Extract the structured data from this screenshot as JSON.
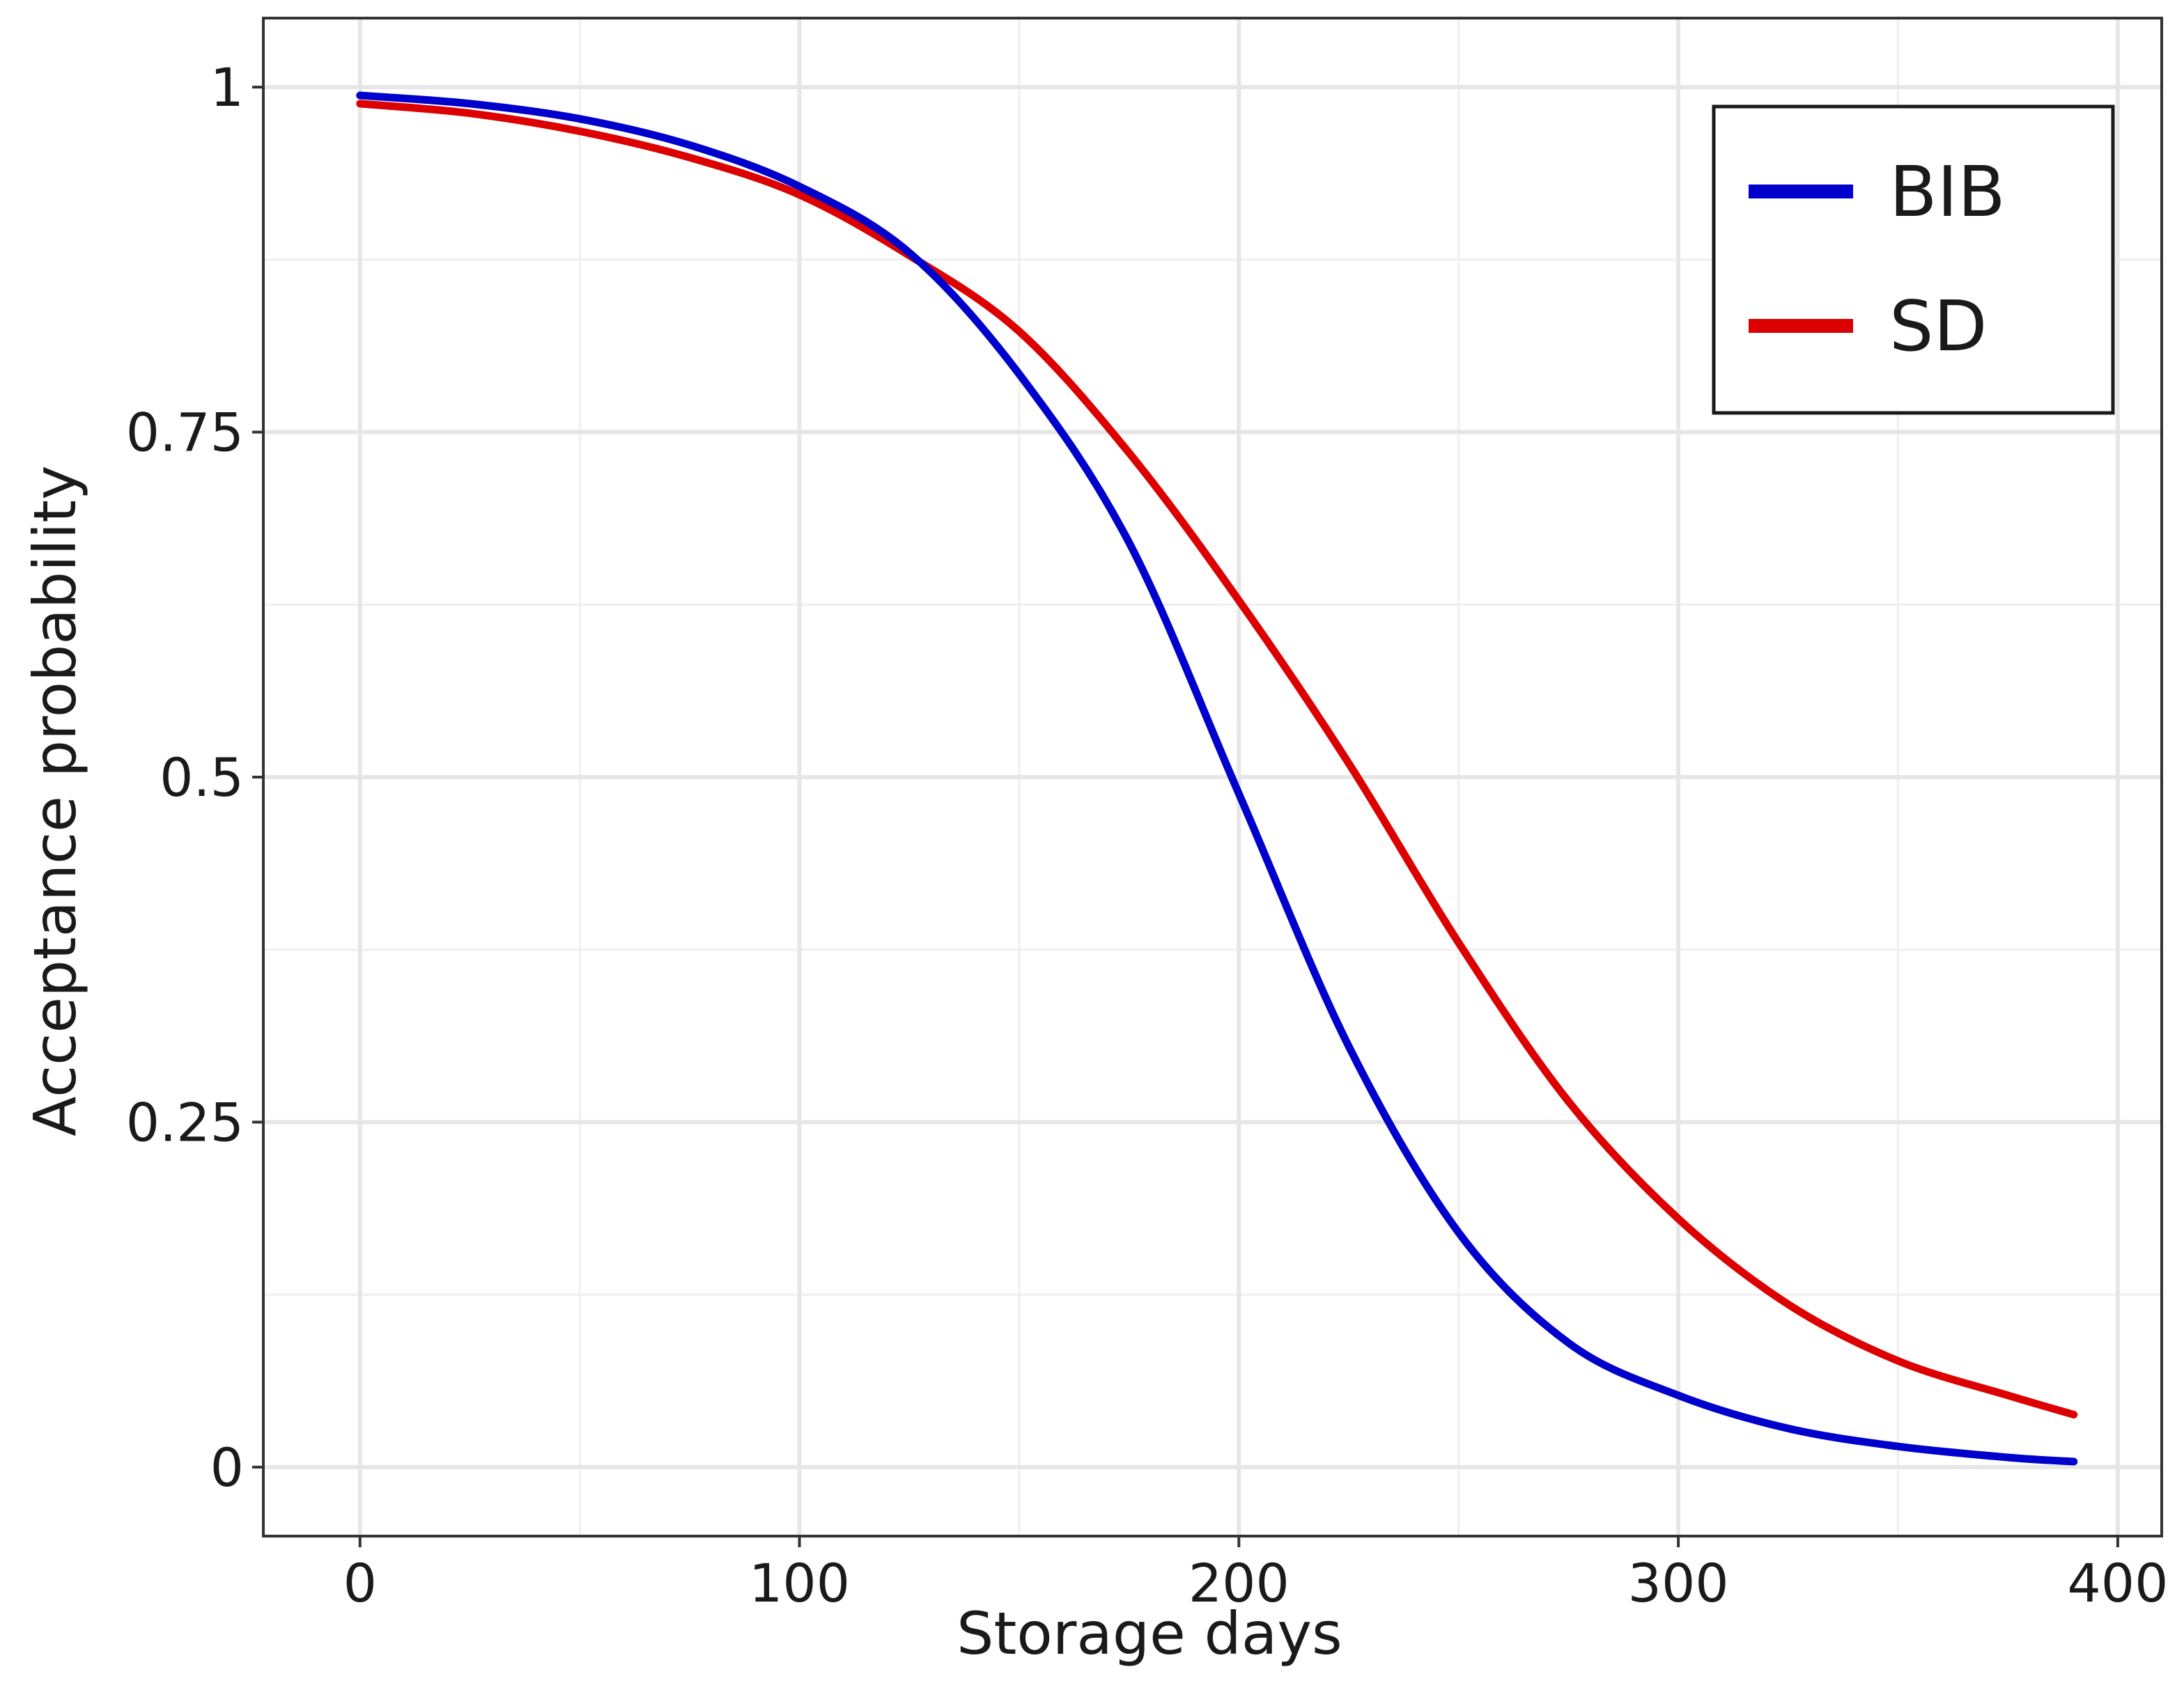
{
  "chart_data": {
    "type": "line",
    "title": "",
    "xlabel": "Storage days",
    "ylabel": "Acceptance probability",
    "xlim": [
      -22,
      410
    ],
    "ylim": [
      -0.05,
      1.05
    ],
    "x_ticks": [
      0,
      100,
      200,
      300,
      400
    ],
    "x_tick_labels": [
      "0",
      "100",
      "200",
      "300",
      "400"
    ],
    "y_ticks": [
      0,
      0.25,
      0.5,
      0.75,
      1
    ],
    "y_tick_labels": [
      "0",
      "0.25",
      "0.5",
      "0.75",
      "1"
    ],
    "x_minor_ticks": [
      50,
      150,
      250,
      350
    ],
    "y_minor_ticks": [
      0.125,
      0.375,
      0.625,
      0.875
    ],
    "grid": true,
    "legend": {
      "placement": "top-right",
      "entries": [
        "BIB",
        "SD"
      ]
    },
    "x": [
      0,
      25,
      50,
      75,
      100,
      125,
      150,
      175,
      200,
      225,
      250,
      275,
      300,
      325,
      350,
      375,
      390
    ],
    "series": [
      {
        "name": "BIB",
        "color": "#0000cc",
        "values": [
          0.994,
          0.988,
          0.977,
          0.958,
          0.928,
          0.88,
          0.792,
          0.67,
          0.488,
          0.305,
          0.17,
          0.09,
          0.052,
          0.028,
          0.015,
          0.007,
          0.004
        ]
      },
      {
        "name": "SD",
        "color": "#dd0000",
        "values": [
          0.988,
          0.981,
          0.968,
          0.949,
          0.922,
          0.878,
          0.823,
          0.735,
          0.628,
          0.51,
          0.38,
          0.265,
          0.18,
          0.118,
          0.077,
          0.052,
          0.038
        ]
      }
    ]
  }
}
